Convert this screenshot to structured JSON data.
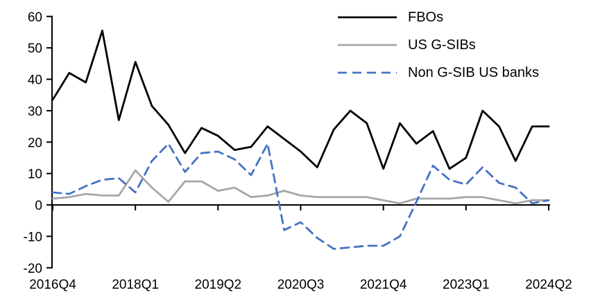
{
  "chart_data": {
    "type": "line",
    "title": "",
    "xlabel": "",
    "ylabel": "",
    "ylim": [
      -20,
      60
    ],
    "y_ticks": [
      60,
      50,
      40,
      30,
      20,
      10,
      0,
      -10,
      -20
    ],
    "x_categories": [
      "2016Q4",
      "2017Q1",
      "2017Q2",
      "2017Q3",
      "2017Q4",
      "2018Q1",
      "2018Q2",
      "2018Q3",
      "2018Q4",
      "2019Q1",
      "2019Q2",
      "2019Q3",
      "2019Q4",
      "2020Q1",
      "2020Q2",
      "2020Q3",
      "2020Q4",
      "2021Q1",
      "2021Q2",
      "2021Q3",
      "2021Q4",
      "2022Q1",
      "2022Q2",
      "2022Q3",
      "2022Q4",
      "2023Q1",
      "2023Q2",
      "2023Q3",
      "2023Q4",
      "2024Q1",
      "2024Q2"
    ],
    "x_tick_labels": [
      "2016Q4",
      "2018Q1",
      "2019Q2",
      "2020Q3",
      "2021Q4",
      "2023Q1",
      "2024Q2"
    ],
    "x_tick_indices": [
      0,
      5,
      10,
      15,
      20,
      25,
      30
    ],
    "grid": false,
    "legend_position": "top-right",
    "series": [
      {
        "name": "FBOs",
        "color": "#000000",
        "style": "solid",
        "values": [
          33.5,
          42,
          39,
          55.5,
          27,
          45.5,
          31.5,
          25.5,
          16.5,
          24.5,
          22,
          17.5,
          18.5,
          25,
          21,
          17,
          12,
          24,
          30,
          26,
          11.5,
          26,
          19.5,
          23.5,
          11.5,
          15,
          30,
          25,
          14,
          25,
          25
        ]
      },
      {
        "name": "US G-SIBs",
        "color": "#a6a6a6",
        "style": "solid",
        "values": [
          2,
          2.5,
          3.5,
          3,
          3,
          11,
          5.5,
          1,
          7.5,
          7.5,
          4.5,
          5.5,
          2.5,
          3,
          4.5,
          3,
          2.5,
          2.5,
          2.5,
          2.5,
          1.5,
          0.5,
          2,
          2,
          2,
          2.5,
          2.5,
          1.5,
          0.5,
          1.5,
          1.5
        ]
      },
      {
        "name": "Non G-SIB US banks",
        "color": "#4472c4",
        "style": "dashed",
        "values": [
          4,
          3.5,
          6,
          8,
          8.5,
          4,
          14,
          19.5,
          10.5,
          16.5,
          17,
          14.5,
          9.5,
          19.5,
          -8,
          -5.5,
          -10.5,
          -14,
          -13.5,
          -13,
          -13,
          -10,
          1,
          12.5,
          8,
          6.5,
          12,
          7,
          5.5,
          0.5,
          1.5
        ]
      }
    ],
    "axis_color": "#000000",
    "font_size_px": 19
  }
}
